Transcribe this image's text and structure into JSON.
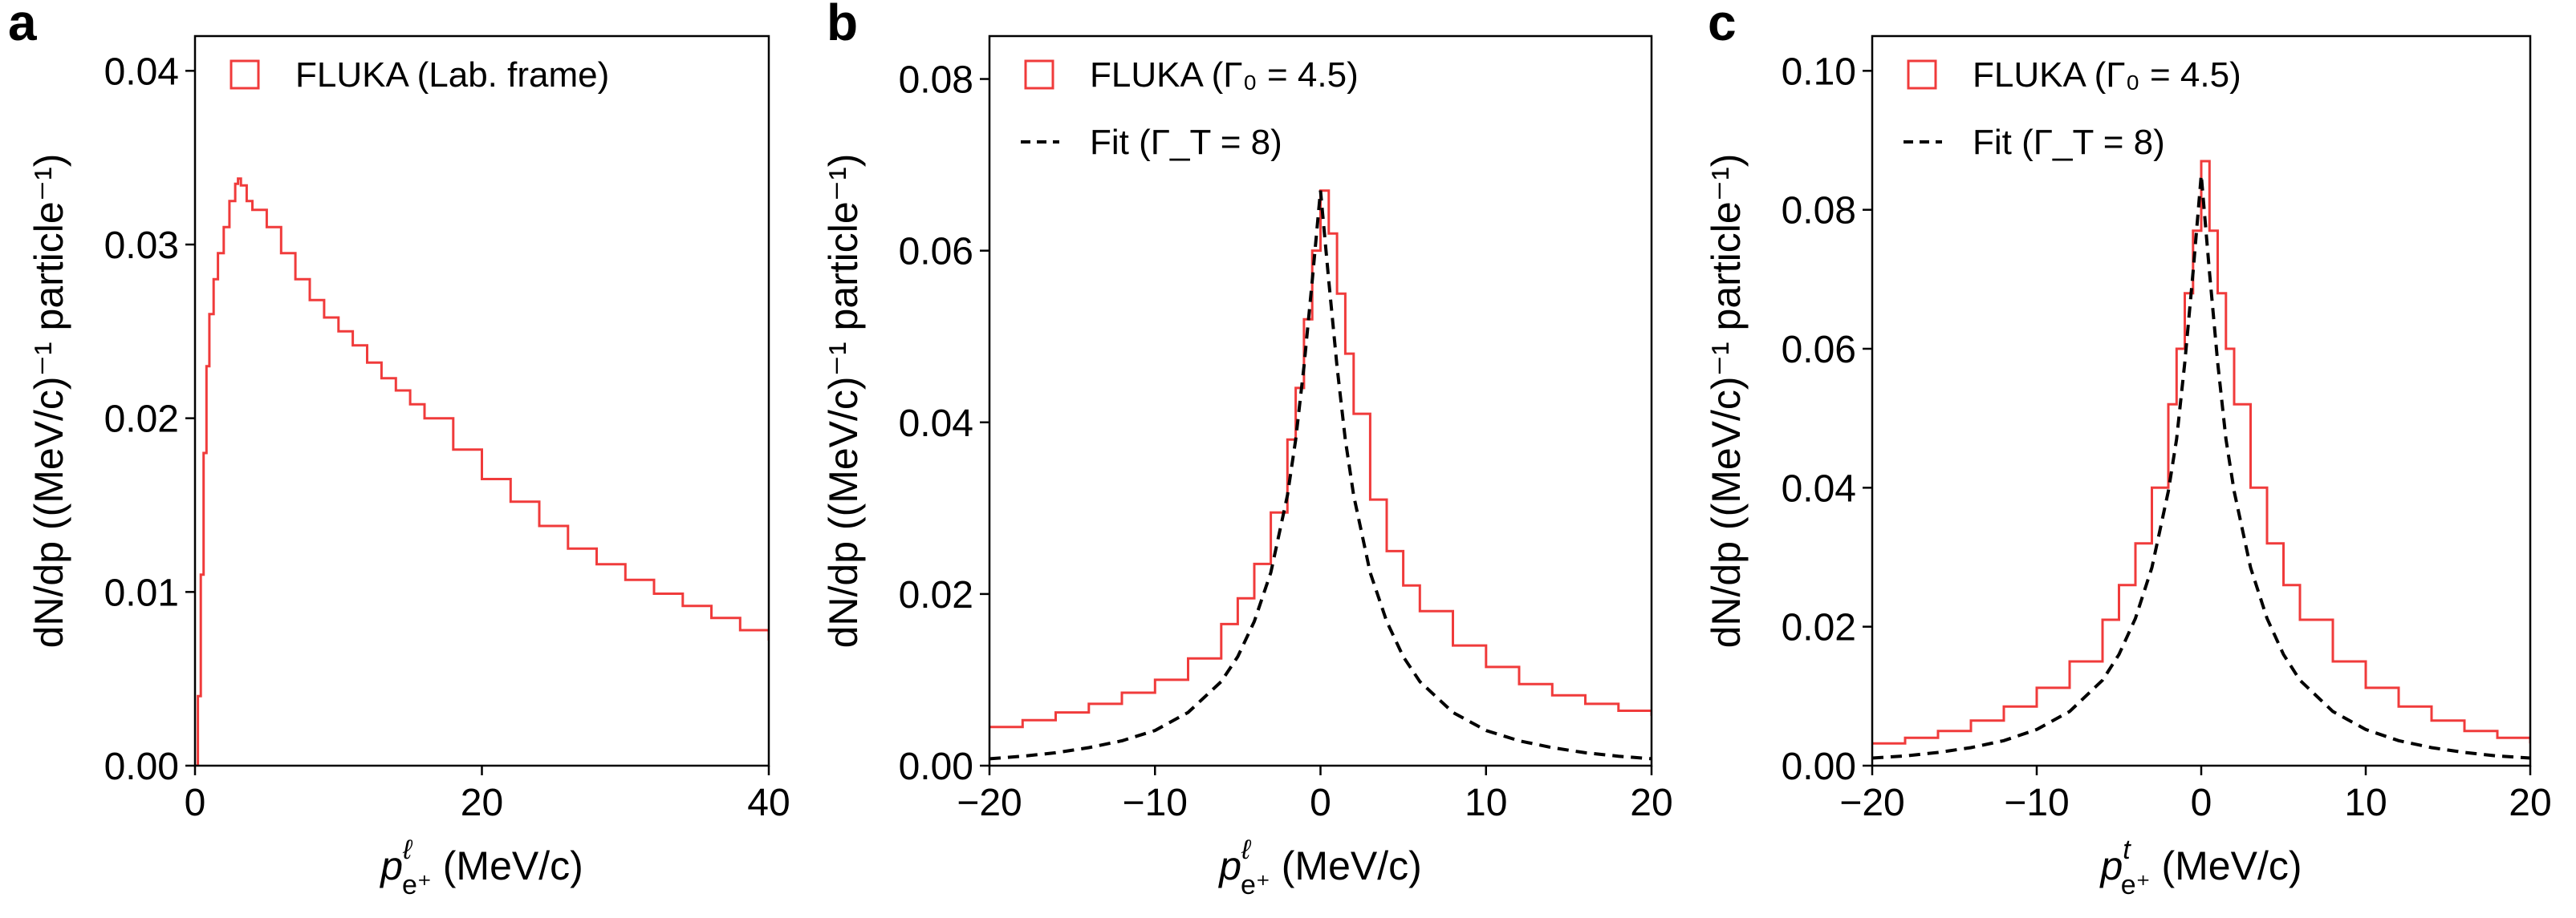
{
  "figure": {
    "colors": {
      "fluka": "#f03b3b",
      "fit": "#000000",
      "axes": "#000000"
    }
  },
  "chart_data": [
    {
      "type": "line",
      "panel_label": "a",
      "xlabel_main": "p",
      "xlabel_sup": "ℓ",
      "xlabel_sub": "e⁺",
      "xlabel_unit": " (MeV/c)",
      "ylabel": "dN/dp ((MeV/c)⁻¹ particle⁻¹)",
      "xlim": [
        0,
        40
      ],
      "ylim": [
        0,
        0.042
      ],
      "xticks": [
        0,
        20,
        40
      ],
      "xtick_labels": [
        "0",
        "20",
        "40"
      ],
      "yticks": [
        0,
        0.01,
        0.02,
        0.03,
        0.04
      ],
      "ytick_labels": [
        "0.00",
        "0.01",
        "0.02",
        "0.03",
        "0.04"
      ],
      "legend_position": "top-left",
      "series": [
        {
          "name": "FLUKA (Lab. frame)",
          "style": "step",
          "marker": "open-square",
          "color": "#f03b3b",
          "x": [
            0,
            0.2,
            0.4,
            0.6,
            0.8,
            1.0,
            1.3,
            1.6,
            2.0,
            2.4,
            2.8,
            3.0,
            3.2,
            3.6,
            4.0,
            5.0,
            6.0,
            7.0,
            8.0,
            9.0,
            10.0,
            11.0,
            12.0,
            13.0,
            14.0,
            15.0,
            16.0,
            18.0,
            20.0,
            22.0,
            24.0,
            26.0,
            28.0,
            30.0,
            32.0,
            34.0,
            36.0,
            38.0,
            40.0
          ],
          "y": [
            0.0,
            0.004,
            0.011,
            0.018,
            0.023,
            0.026,
            0.028,
            0.0295,
            0.031,
            0.0325,
            0.0335,
            0.0338,
            0.0334,
            0.0325,
            0.032,
            0.031,
            0.0295,
            0.028,
            0.0268,
            0.0258,
            0.025,
            0.0242,
            0.0232,
            0.0223,
            0.0216,
            0.0208,
            0.02,
            0.0182,
            0.0165,
            0.0152,
            0.0138,
            0.0125,
            0.0116,
            0.0107,
            0.0099,
            0.0092,
            0.0085,
            0.0078,
            0.0072
          ]
        }
      ]
    },
    {
      "type": "line",
      "panel_label": "b",
      "xlabel_main": "p",
      "xlabel_sup": "ℓ",
      "xlabel_sub": "e⁺",
      "xlabel_unit": " (MeV/c)",
      "ylabel": "dN/dp ((MeV/c)⁻¹ particle⁻¹)",
      "xlim": [
        -20,
        20
      ],
      "ylim": [
        0,
        0.085
      ],
      "xticks": [
        -20,
        -10,
        0,
        10,
        20
      ],
      "xtick_labels": [
        "−20",
        "−10",
        "0",
        "10",
        "20"
      ],
      "yticks": [
        0,
        0.02,
        0.04,
        0.06,
        0.08
      ],
      "ytick_labels": [
        "0.00",
        "0.02",
        "0.04",
        "0.06",
        "0.08"
      ],
      "legend_position": "top-left",
      "series": [
        {
          "name": "FLUKA (Γ₀ = 4.5)",
          "style": "step",
          "marker": "open-square",
          "color": "#f03b3b",
          "x": [
            -20,
            -18,
            -16,
            -14,
            -12,
            -10,
            -8,
            -6,
            -5,
            -4,
            -3,
            -2,
            -1.5,
            -1,
            -0.5,
            0,
            0.5,
            1,
            1.5,
            2,
            3,
            4,
            5,
            6,
            8,
            10,
            12,
            14,
            16,
            18,
            20
          ],
          "y": [
            0.0045,
            0.0053,
            0.0062,
            0.0072,
            0.0085,
            0.01,
            0.0125,
            0.0165,
            0.0195,
            0.0235,
            0.0295,
            0.038,
            0.044,
            0.052,
            0.06,
            0.067,
            0.062,
            0.055,
            0.048,
            0.041,
            0.031,
            0.025,
            0.021,
            0.018,
            0.014,
            0.0115,
            0.0095,
            0.0082,
            0.0072,
            0.0064,
            0.0058
          ]
        },
        {
          "name": "Fit (Γ_T = 8)",
          "style": "dashed",
          "marker": "dashed-line",
          "color": "#000000",
          "x": [
            -20,
            -18,
            -16,
            -14,
            -12,
            -10,
            -8,
            -6,
            -5,
            -4,
            -3,
            -2,
            -1.5,
            -1,
            -0.5,
            0,
            0.5,
            1,
            1.5,
            2,
            3,
            4,
            5,
            6,
            8,
            10,
            12,
            14,
            16,
            18,
            20
          ],
          "y": [
            0.0008,
            0.0011,
            0.0015,
            0.0021,
            0.0029,
            0.0041,
            0.0062,
            0.0098,
            0.0127,
            0.0168,
            0.0225,
            0.0315,
            0.038,
            0.0465,
            0.0565,
            0.067,
            0.0565,
            0.0465,
            0.038,
            0.0315,
            0.0225,
            0.0168,
            0.0127,
            0.0098,
            0.0062,
            0.0041,
            0.0029,
            0.0021,
            0.0015,
            0.0011,
            0.0008
          ]
        }
      ]
    },
    {
      "type": "line",
      "panel_label": "c",
      "xlabel_main": "p",
      "xlabel_sup": "t",
      "xlabel_sub": "e⁺",
      "xlabel_unit": " (MeV/c)",
      "ylabel": "dN/dp ((MeV/c)⁻¹ particle⁻¹)",
      "xlim": [
        -20,
        20
      ],
      "ylim": [
        0,
        0.105
      ],
      "xticks": [
        -20,
        -10,
        0,
        10,
        20
      ],
      "xtick_labels": [
        "−20",
        "−10",
        "0",
        "10",
        "20"
      ],
      "yticks": [
        0,
        0.02,
        0.04,
        0.06,
        0.08,
        0.1
      ],
      "ytick_labels": [
        "0.00",
        "0.02",
        "0.04",
        "0.06",
        "0.08",
        "0.10"
      ],
      "legend_position": "top-left",
      "series": [
        {
          "name": "FLUKA (Γ₀ = 4.5)",
          "style": "step",
          "marker": "open-square",
          "color": "#f03b3b",
          "x": [
            -20,
            -18,
            -16,
            -14,
            -12,
            -10,
            -8,
            -6,
            -5,
            -4,
            -3,
            -2,
            -1.5,
            -1,
            -0.5,
            0,
            0.5,
            1,
            1.5,
            2,
            3,
            4,
            5,
            6,
            8,
            10,
            12,
            14,
            16,
            18,
            20
          ],
          "y": [
            0.0032,
            0.004,
            0.005,
            0.0065,
            0.0085,
            0.0112,
            0.015,
            0.021,
            0.026,
            0.032,
            0.04,
            0.052,
            0.06,
            0.068,
            0.077,
            0.087,
            0.077,
            0.068,
            0.06,
            0.052,
            0.04,
            0.032,
            0.026,
            0.021,
            0.015,
            0.0112,
            0.0085,
            0.0065,
            0.005,
            0.004,
            0.0032
          ]
        },
        {
          "name": "Fit (Γ_T = 8)",
          "style": "dashed",
          "marker": "dashed-line",
          "color": "#000000",
          "x": [
            -20,
            -18,
            -16,
            -14,
            -12,
            -10,
            -8,
            -6,
            -5,
            -4,
            -3,
            -2,
            -1.5,
            -1,
            -0.5,
            0,
            0.5,
            1,
            1.5,
            2,
            3,
            4,
            5,
            6,
            8,
            10,
            12,
            14,
            16,
            18,
            20
          ],
          "y": [
            0.0011,
            0.0014,
            0.0019,
            0.0026,
            0.0036,
            0.0052,
            0.0078,
            0.0123,
            0.016,
            0.0212,
            0.0285,
            0.0395,
            0.047,
            0.058,
            0.071,
            0.085,
            0.071,
            0.058,
            0.047,
            0.0395,
            0.0285,
            0.0212,
            0.016,
            0.0123,
            0.0078,
            0.0052,
            0.0036,
            0.0026,
            0.0019,
            0.0014,
            0.0011
          ]
        }
      ]
    }
  ]
}
